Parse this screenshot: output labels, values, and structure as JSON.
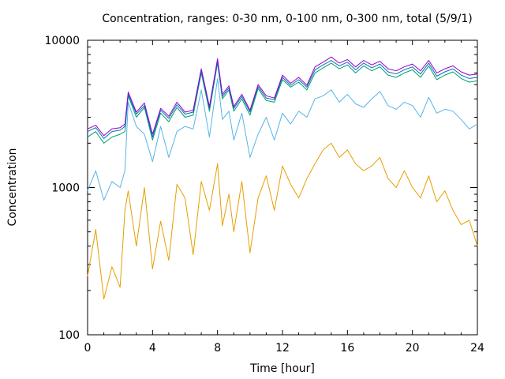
{
  "chart_data": {
    "type": "line",
    "title": "Concentration, ranges: 0-30 nm, 0-100 nm, 0-300 nm, total (5/9/1)",
    "xlabel": "Time [hour]",
    "ylabel": "Concentration",
    "xlim": [
      0,
      24
    ],
    "ylim": [
      100,
      10000
    ],
    "yscale": "log",
    "grid": false,
    "legend": "none",
    "xticks": [
      "0",
      "4",
      "8",
      "12",
      "16",
      "20",
      "24"
    ],
    "yticks": [
      "100",
      "1000",
      "10000"
    ],
    "x": [
      0,
      0.5,
      1,
      1.5,
      2,
      2.3,
      2.5,
      3,
      3.5,
      4,
      4.5,
      5,
      5.5,
      6,
      6.5,
      7,
      7.5,
      8,
      8.3,
      8.7,
      9,
      9.5,
      10,
      10.5,
      11,
      11.5,
      12,
      12.5,
      13,
      13.5,
      14,
      14.5,
      15,
      15.5,
      16,
      16.5,
      17,
      17.5,
      18,
      18.5,
      19,
      19.5,
      20,
      20.5,
      21,
      21.5,
      22,
      22.5,
      23,
      23.5,
      24
    ],
    "series": [
      {
        "color": "#e69f00",
        "values": [
          250,
          520,
          175,
          290,
          210,
          700,
          950,
          400,
          1000,
          280,
          590,
          320,
          1050,
          850,
          350,
          1100,
          700,
          1450,
          550,
          900,
          500,
          1100,
          360,
          850,
          1200,
          700,
          1400,
          1050,
          850,
          1150,
          1450,
          1800,
          2000,
          1600,
          1800,
          1450,
          1300,
          1400,
          1600,
          1150,
          1000,
          1300,
          1000,
          850,
          1200,
          800,
          950,
          700,
          560,
          600,
          400
        ]
      },
      {
        "color": "#56b4e9",
        "values": [
          950,
          1300,
          820,
          1100,
          1000,
          1300,
          3800,
          2600,
          2300,
          1500,
          2600,
          1600,
          2400,
          2600,
          2500,
          4600,
          2200,
          5500,
          2900,
          3300,
          2100,
          3200,
          1600,
          2300,
          3000,
          2100,
          3200,
          2700,
          3300,
          3000,
          4000,
          4200,
          4600,
          3800,
          4300,
          3700,
          3500,
          4000,
          4500,
          3600,
          3400,
          3800,
          3600,
          3000,
          4100,
          3200,
          3400,
          3300,
          2900,
          2500,
          2700
        ]
      },
      {
        "color": "#009e73",
        "values": [
          2200,
          2400,
          2000,
          2200,
          2300,
          2400,
          4200,
          3000,
          3500,
          2100,
          3200,
          2800,
          3500,
          3000,
          3100,
          6000,
          3300,
          7000,
          4000,
          4600,
          3300,
          4000,
          3100,
          4700,
          3900,
          3800,
          5400,
          4800,
          5200,
          4600,
          6000,
          6500,
          7000,
          6400,
          6800,
          6000,
          6700,
          6200,
          6600,
          5800,
          5600,
          6000,
          6300,
          5600,
          6700,
          5400,
          5800,
          6100,
          5500,
          5200,
          5300
        ]
      },
      {
        "color": "#0072b2",
        "values": [
          2400,
          2550,
          2150,
          2400,
          2450,
          2600,
          4300,
          3150,
          3600,
          2200,
          3350,
          2950,
          3650,
          3150,
          3250,
          6200,
          3450,
          7200,
          4150,
          4750,
          3450,
          4150,
          3250,
          4850,
          4050,
          3950,
          5600,
          4950,
          5400,
          4800,
          6300,
          6800,
          7300,
          6700,
          7100,
          6300,
          7000,
          6500,
          6900,
          6100,
          5900,
          6300,
          6600,
          5900,
          7000,
          5700,
          6100,
          6400,
          5800,
          5500,
          5600
        ]
      },
      {
        "color": "#9400d3",
        "values": [
          2500,
          2650,
          2250,
          2500,
          2550,
          2700,
          4450,
          3250,
          3750,
          2300,
          3450,
          3050,
          3800,
          3250,
          3350,
          6400,
          3550,
          7500,
          4300,
          4900,
          3550,
          4300,
          3350,
          5000,
          4200,
          4050,
          5800,
          5100,
          5600,
          4950,
          6600,
          7100,
          7700,
          7000,
          7400,
          6600,
          7300,
          6800,
          7200,
          6400,
          6200,
          6600,
          6900,
          6200,
          7300,
          6000,
          6400,
          6700,
          6100,
          5800,
          5900
        ]
      }
    ]
  }
}
